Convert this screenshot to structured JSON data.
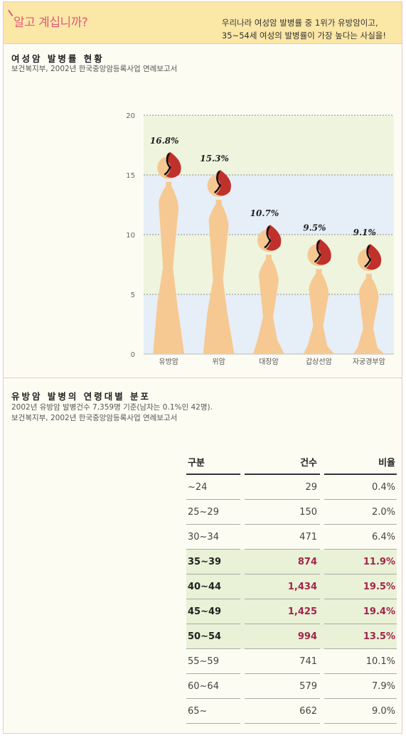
{
  "banner": {
    "title": "알고 계십니까?",
    "desc_line1": "우리나라 여성암 발병률 중 1위가 유방암이고,",
    "desc_line2": "35~54세 여성의 발병률이 가장 높다는 사실을!"
  },
  "section1": {
    "title": "여성암 발병률 현황",
    "source": "보건복지부, 2002년 한국중앙암등록사업 연례보고서"
  },
  "section2": {
    "title": "유방암 발병의 연령대별 분포",
    "note": "2002년 유방암 발병건수 7,359명 기준(남자는 0.1%인 42명).",
    "source": "보건복지부, 2002년 한국중앙암등록사업 연례보고서"
  },
  "chart_data": {
    "type": "bar",
    "title": "여성암 발병률 현황",
    "categories": [
      "유방암",
      "위암",
      "대장암",
      "갑상선암",
      "자궁경부암"
    ],
    "values": [
      16.8,
      15.3,
      10.7,
      9.5,
      9.1
    ],
    "value_labels": [
      "16.8%",
      "15.3%",
      "10.7%",
      "9.5%",
      "9.1%"
    ],
    "ylim": [
      0,
      20
    ],
    "yticks": [
      0,
      5,
      10,
      15,
      20
    ],
    "grid": true,
    "colors": {
      "figure": "#f6c992",
      "flame": "#c0312b",
      "band_green": "#eef4de",
      "band_blue": "#e6eef7"
    }
  },
  "table": {
    "headers": [
      "구분",
      "건수",
      "비율"
    ],
    "rows": [
      {
        "age": "~24",
        "count": "29",
        "ratio": "0.4%",
        "highlight": false
      },
      {
        "age": "25~29",
        "count": "150",
        "ratio": "2.0%",
        "highlight": false
      },
      {
        "age": "30~34",
        "count": "471",
        "ratio": "6.4%",
        "highlight": false
      },
      {
        "age": "35~39",
        "count": "874",
        "ratio": "11.9%",
        "highlight": true
      },
      {
        "age": "40~44",
        "count": "1,434",
        "ratio": "19.5%",
        "highlight": true
      },
      {
        "age": "45~49",
        "count": "1,425",
        "ratio": "19.4%",
        "highlight": true
      },
      {
        "age": "50~54",
        "count": "994",
        "ratio": "13.5%",
        "highlight": true
      },
      {
        "age": "55~59",
        "count": "741",
        "ratio": "10.1%",
        "highlight": false
      },
      {
        "age": "60~64",
        "count": "579",
        "ratio": "7.9%",
        "highlight": false
      },
      {
        "age": "65~",
        "count": "662",
        "ratio": "9.0%",
        "highlight": false
      }
    ]
  }
}
